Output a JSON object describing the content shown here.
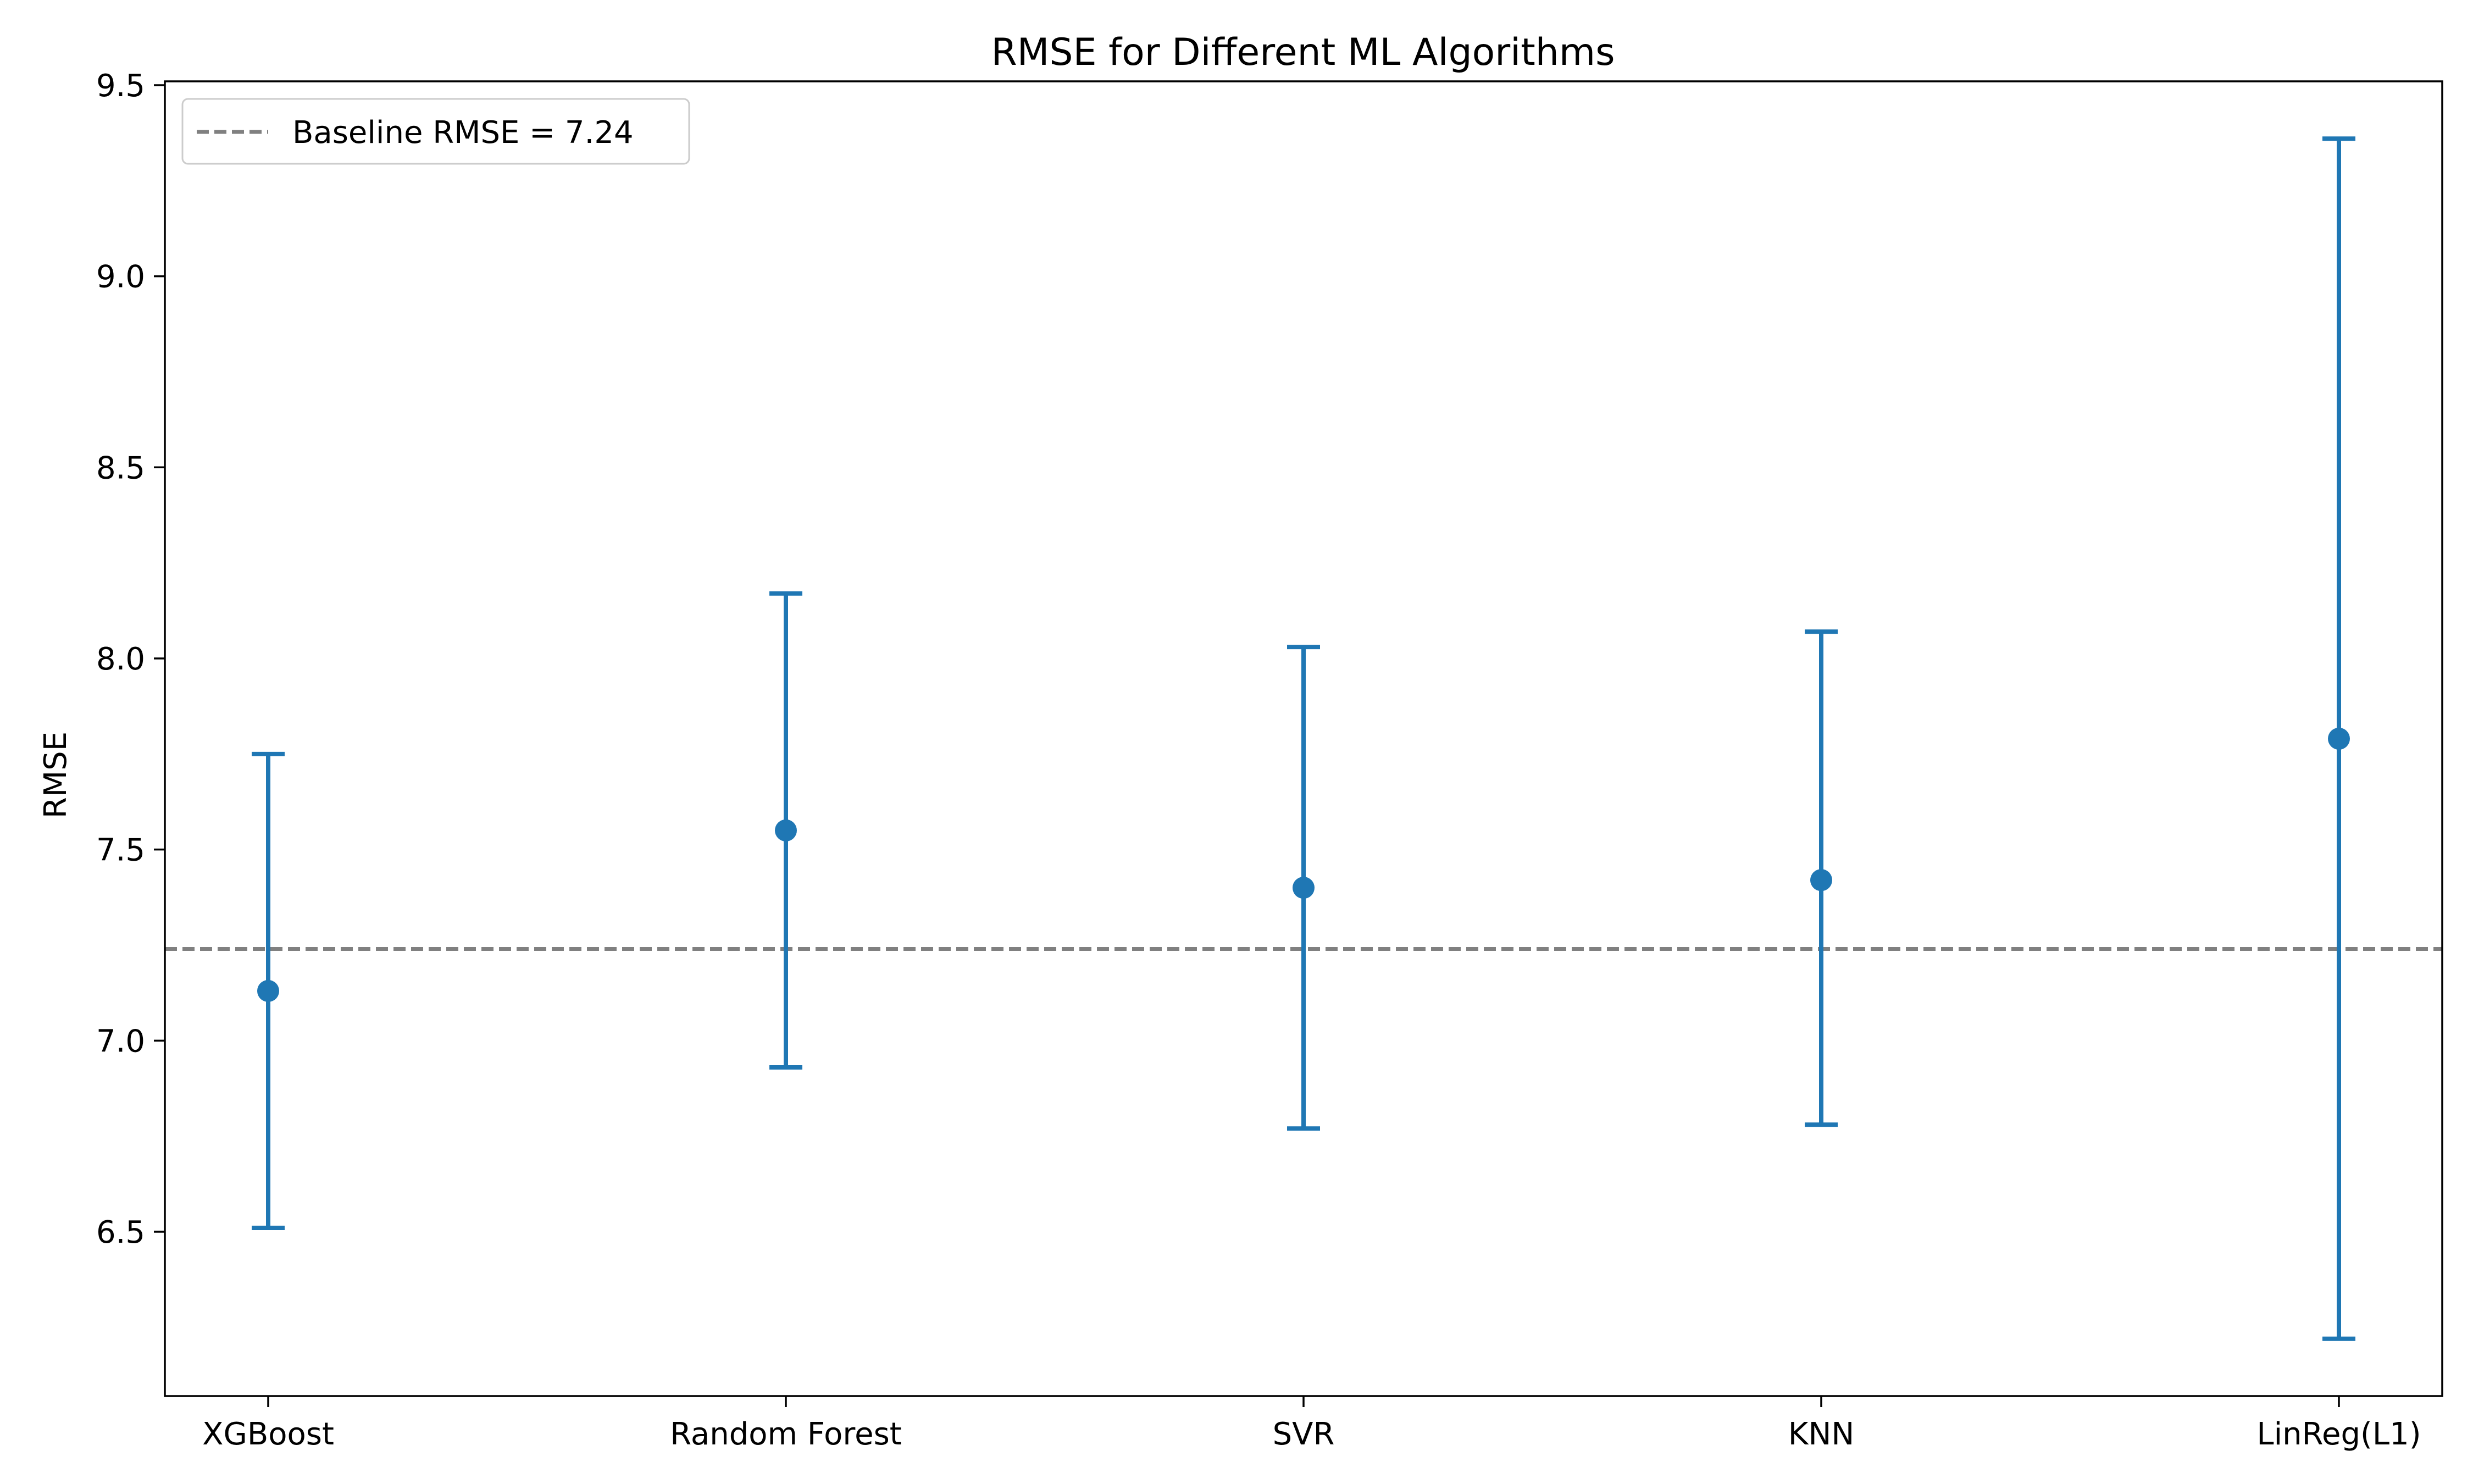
{
  "chart_data": {
    "type": "errorbar",
    "title": "RMSE for Different ML Algorithms",
    "xlabel": "",
    "ylabel": "RMSE",
    "categories": [
      "XGBoost",
      "Random Forest",
      "SVR",
      "KNN",
      "LinReg(L1)"
    ],
    "series": [
      {
        "values": [
          7.13,
          7.55,
          7.4,
          7.42,
          7.79
        ],
        "lower": [
          6.51,
          6.93,
          6.77,
          6.78,
          6.22
        ],
        "upper": [
          7.75,
          8.17,
          8.03,
          8.07,
          9.36
        ]
      }
    ],
    "baseline": {
      "label": "Baseline RMSE = 7.24",
      "value": 7.24
    },
    "ylim": [
      6.07,
      9.51
    ],
    "yticks": [
      6.5,
      7.0,
      7.5,
      8.0,
      8.5,
      9.0,
      9.5
    ],
    "ytick_labels": [
      "6.5",
      "7.0",
      "7.5",
      "8.0",
      "8.5",
      "9.0",
      "9.5"
    ],
    "grid": false,
    "legend_position": "top-left",
    "colors": {
      "series": "#1f77b4",
      "baseline": "#808080",
      "axes": "#000000"
    }
  }
}
